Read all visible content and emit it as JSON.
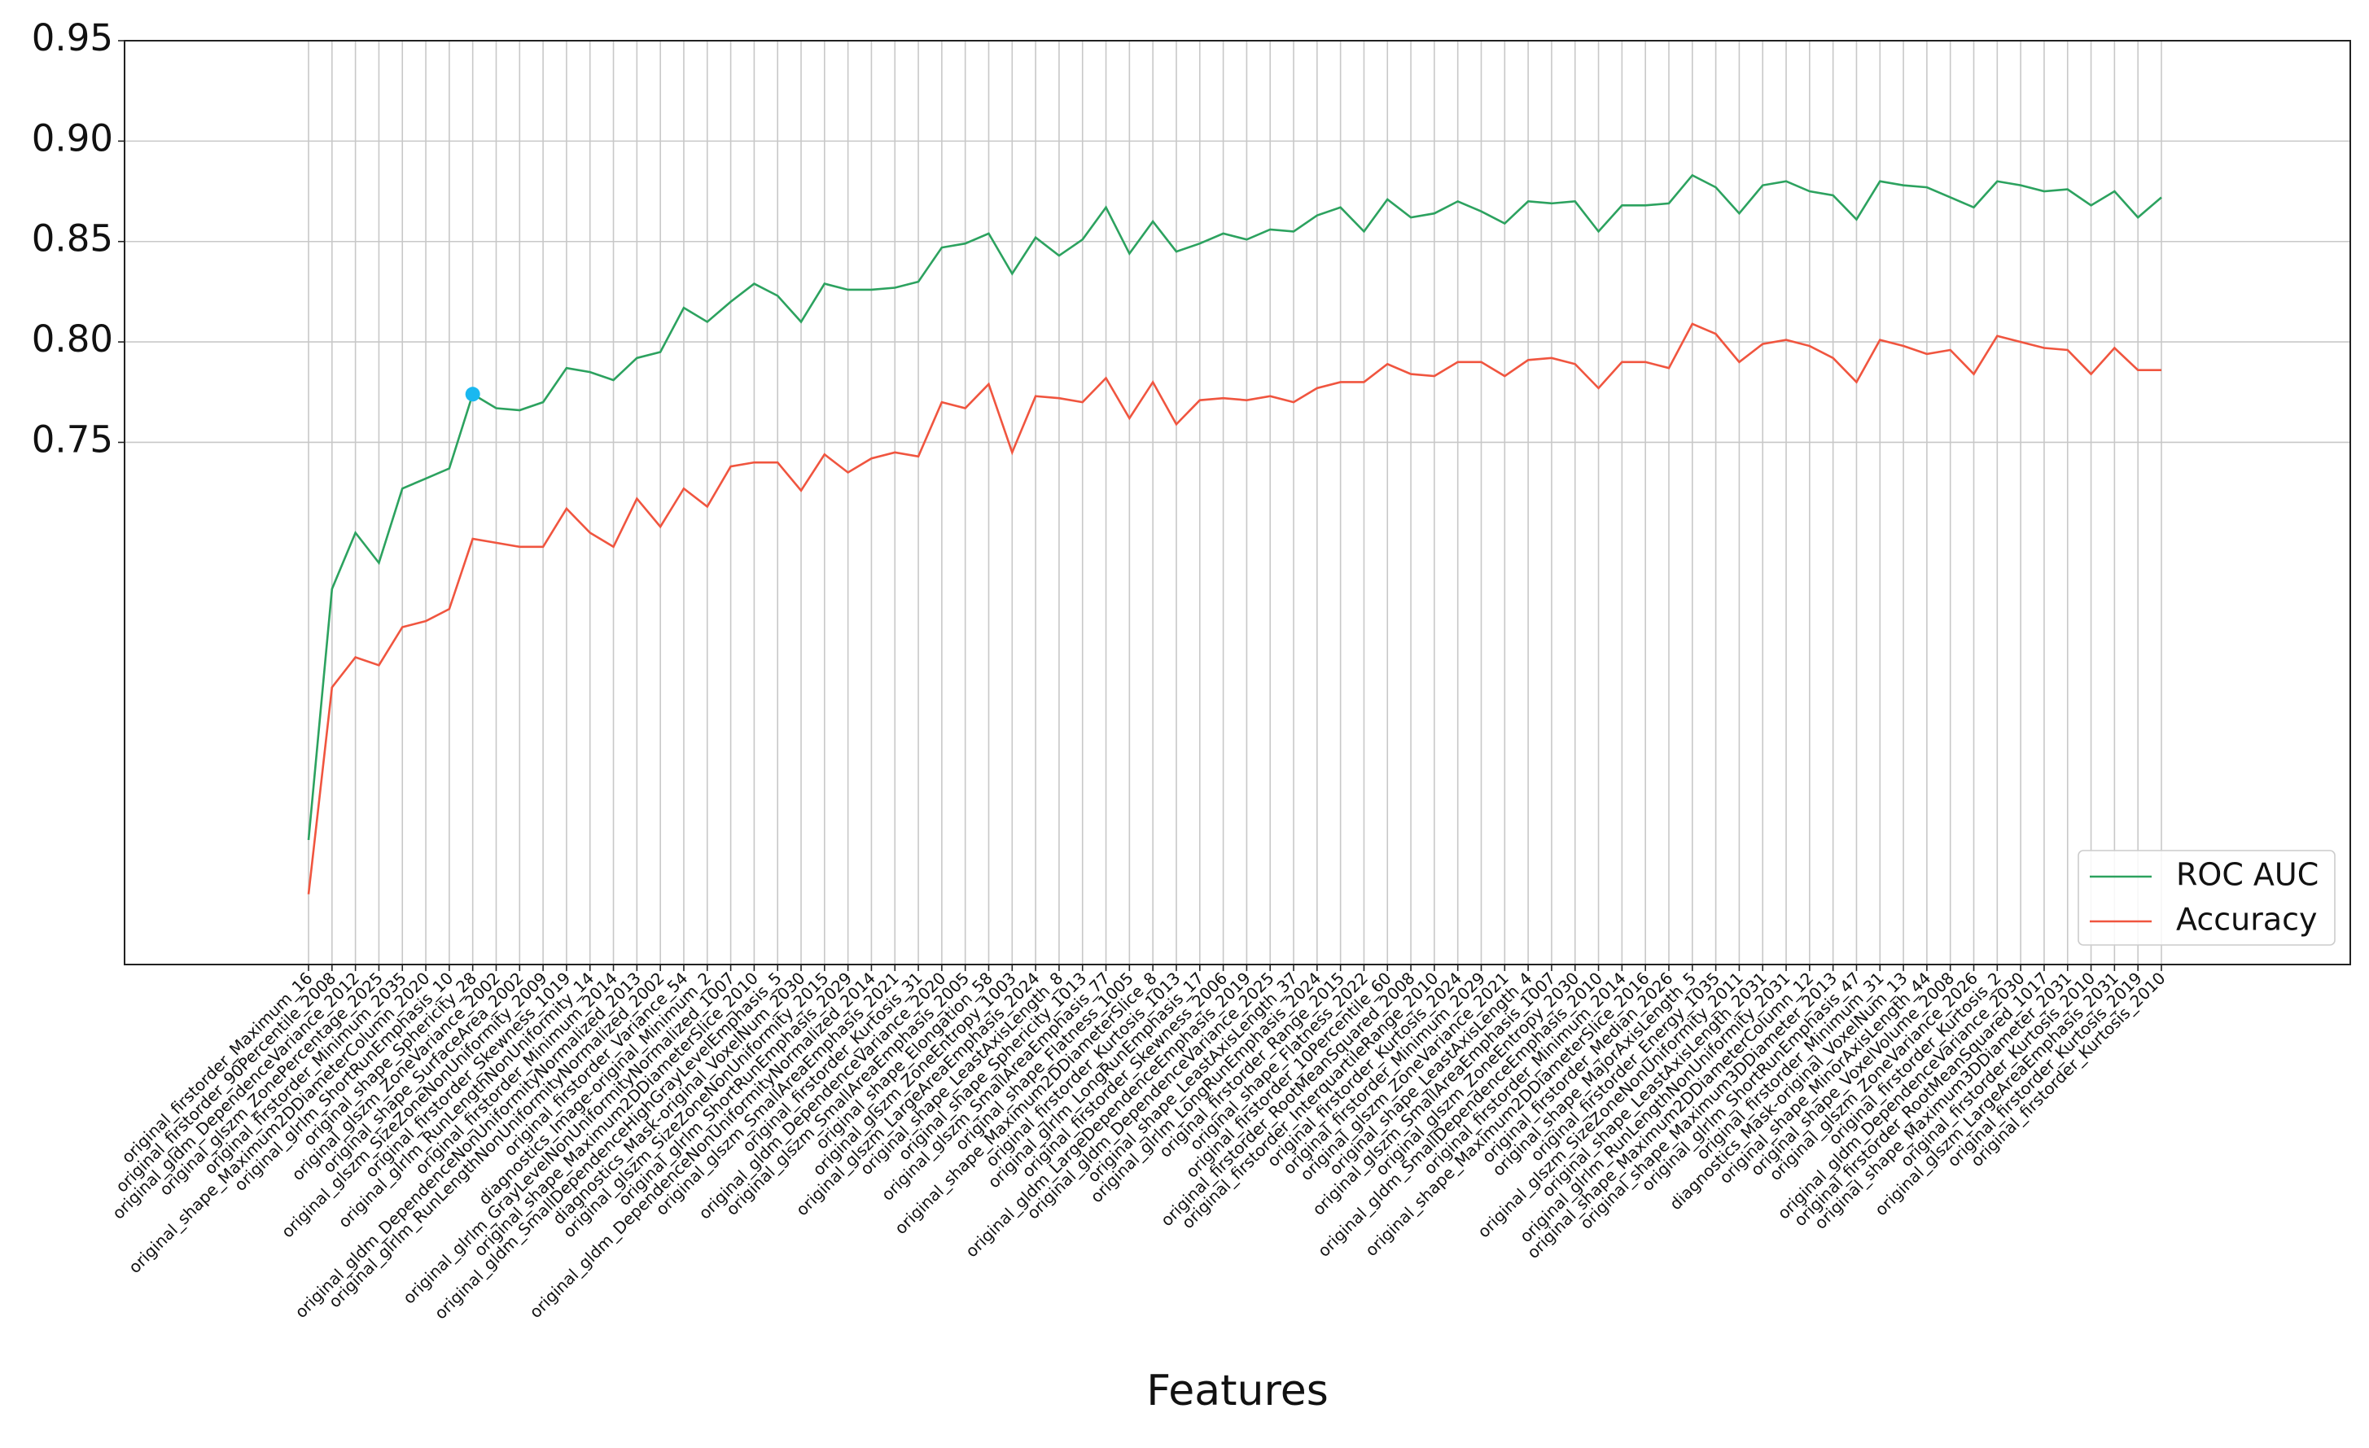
{
  "chart_data": {
    "type": "line",
    "xlabel": "Features",
    "categories": [
      "original_firstorder_Maximum_16",
      "original_firstorder_90Percentile_2008",
      "original_gldm_DependenceVariance_2012",
      "original_glszm_ZonePercentage_2025",
      "original_firstorder_Minimum_2035",
      "original_shape_Maximum2DDiameterColumn_2020",
      "original_glrlm_ShortRunEmphasis_10",
      "original_shape_Sphericity_28",
      "original_glszm_ZoneVariance_2002",
      "original_shape_SurfaceArea_2002",
      "original_glszm_SizeZoneNonUniformity_2009",
      "original_firstorder_Skewness_1019",
      "original_glrlm_RunLengthNonUniformity_14",
      "original_firstorder_Minimum_2014",
      "original_gldm_DependenceNonUniformityNormalized_2013",
      "original_glrlm_RunLengthNonUniformityNormalized_2002",
      "original_firstorder_Variance_54",
      "diagnostics_Image-original_Minimum_2",
      "original_glrlm_GrayLevelNonUniformityNormalized_1007",
      "original_shape_Maximum2DDiameterSlice_2010",
      "original_gldm_SmallDependenceHighGrayLevelEmphasis_5",
      "diagnostics_Mask-original_VoxelNum_2030",
      "original_glszm_SizeZoneNonUniformity_2015",
      "original_glrlm_ShortRunEmphasis_2029",
      "original_gldm_DependenceNonUniformityNormalized_2014",
      "original_glszm_SmallAreaEmphasis_2021",
      "original_firstorder_Kurtosis_31",
      "original_gldm_DependenceVariance_2020",
      "original_glszm_SmallAreaEmphasis_2005",
      "original_shape_Elongation_58",
      "original_glszm_ZoneEntropy_1003",
      "original_glszm_LargeAreaEmphasis_2024",
      "original_shape_LeastAxisLength_8",
      "original_shape_Sphericity_1013",
      "original_glszm_SmallAreaEmphasis_77",
      "original_shape_Flatness_1005",
      "original_shape_Maximum2DDiameterSlice_8",
      "original_firstorder_Kurtosis_1013",
      "original_glrlm_LongRunEmphasis_17",
      "original_firstorder_Skewness_2006",
      "original_gldm_LargeDependenceEmphasis_2019",
      "original_gldm_DependenceVariance_2025",
      "original_shape_LeastAxisLength_37",
      "original_glrlm_LongRunEmphasis_2024",
      "original_firstorder_Range_2015",
      "original_shape_Flatness_2022",
      "original_firstorder_10Percentile_60",
      "original_firstorder_RootMeanSquared_2008",
      "original_firstorder_InterquartileRange_2010",
      "original_firstorder_Kurtosis_2024",
      "original_firstorder_Minimum_2029",
      "original_glszm_ZoneVariance_2021",
      "original_shape_LeastAxisLength_4",
      "original_glszm_SmallAreaEmphasis_1007",
      "original_glszm_ZoneEntropy_2030",
      "original_gldm_SmallDependenceEmphasis_2010",
      "original_firstorder_Minimum_2014",
      "original_shape_Maximum2DDiameterSlice_2016",
      "original_firstorder_Median_2026",
      "original_shape_MajorAxisLength_5",
      "original_firstorder_Energy_1035",
      "original_glszm_SizeZoneNonUniformity_2011",
      "original_shape_LeastAxisLength_2031",
      "original_glrlm_RunLengthNonUniformity_2031",
      "original_shape_Maximum2DDiameterColumn_12",
      "original_shape_Maximum3DDiameter_2013",
      "original_glrlm_ShortRunEmphasis_47",
      "original_firstorder_Minimum_31",
      "diagnostics_Mask-original_VoxelNum_13",
      "original_shape_MinorAxisLength_44",
      "original_shape_VoxelVolume_2008",
      "original_glszm_ZoneVariance_2026",
      "original_firstorder_Kurtosis_2",
      "original_gldm_DependenceVariance_2030",
      "original_firstorder_RootMeanSquared_1017",
      "original_shape_Maximum3DDiameter_2031",
      "original_firstorder_Kurtosis_2010",
      "original_glszm_LargeAreaEmphasis_2031",
      "original_firstorder_Kurtosis_2019",
      "original_firstorder_Kurtosis_2010"
    ],
    "series": [
      {
        "name": "ROC AUC",
        "color": "#2ca25f",
        "values": [
          0.552,
          0.677,
          0.705,
          0.69,
          0.727,
          0.732,
          0.737,
          0.774,
          0.767,
          0.766,
          0.77,
          0.787,
          0.785,
          0.781,
          0.792,
          0.795,
          0.817,
          0.81,
          0.82,
          0.829,
          0.823,
          0.81,
          0.829,
          0.826,
          0.826,
          0.827,
          0.83,
          0.847,
          0.849,
          0.854,
          0.834,
          0.852,
          0.843,
          0.851,
          0.867,
          0.844,
          0.86,
          0.845,
          0.849,
          0.854,
          0.851,
          0.856,
          0.855,
          0.863,
          0.867,
          0.855,
          0.871,
          0.862,
          0.864,
          0.87,
          0.865,
          0.859,
          0.87,
          0.869,
          0.87,
          0.855,
          0.868,
          0.868,
          0.869,
          0.883,
          0.877,
          0.864,
          0.878,
          0.88,
          0.875,
          0.873,
          0.861,
          0.88,
          0.878,
          0.877,
          0.872,
          0.867,
          0.88,
          0.878,
          0.875,
          0.876,
          0.868,
          0.875,
          0.862,
          0.872
        ]
      },
      {
        "name": "Accuracy",
        "color": "#f0553f",
        "values": [
          0.525,
          0.628,
          0.643,
          0.639,
          0.658,
          0.661,
          0.667,
          0.702,
          0.7,
          0.698,
          0.698,
          0.717,
          0.705,
          0.698,
          0.722,
          0.708,
          0.727,
          0.718,
          0.738,
          0.74,
          0.74,
          0.726,
          0.744,
          0.735,
          0.742,
          0.745,
          0.743,
          0.77,
          0.767,
          0.779,
          0.745,
          0.773,
          0.772,
          0.77,
          0.782,
          0.762,
          0.78,
          0.759,
          0.771,
          0.772,
          0.771,
          0.773,
          0.77,
          0.777,
          0.78,
          0.78,
          0.789,
          0.784,
          0.783,
          0.79,
          0.79,
          0.783,
          0.791,
          0.792,
          0.789,
          0.777,
          0.79,
          0.79,
          0.787,
          0.809,
          0.804,
          0.79,
          0.799,
          0.801,
          0.798,
          0.792,
          0.78,
          0.801,
          0.798,
          0.794,
          0.796,
          0.784,
          0.803,
          0.8,
          0.797,
          0.796,
          0.784,
          0.797,
          0.786,
          0.786
        ]
      }
    ],
    "highlight": {
      "series": 0,
      "index": 7,
      "color": "#1ab8f0"
    },
    "ylim": [
      0.49,
      0.95
    ],
    "yticks": [
      {
        "value": 0.75,
        "label": "0.75"
      },
      {
        "value": 0.8,
        "label": "0.80"
      },
      {
        "value": 0.85,
        "label": "0.85"
      },
      {
        "value": 0.9,
        "label": "0.90"
      },
      {
        "value": 0.95,
        "label": "0.95"
      }
    ],
    "grid": true,
    "legend": "lower right"
  }
}
